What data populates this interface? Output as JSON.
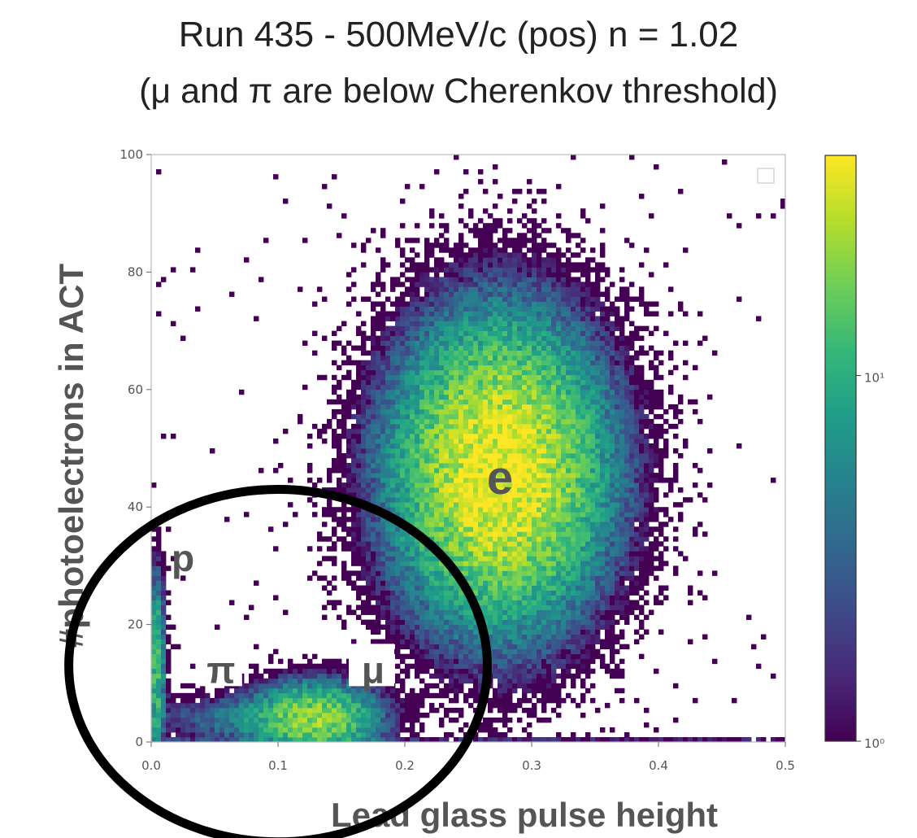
{
  "header": {
    "title": "Run 435 - 500MeV/c (pos) n = 1.02",
    "subtitle": "(μ and π are below Cherenkov threshold)"
  },
  "chart_data": {
    "type": "heatmap",
    "xlabel": "Lead glass pulse height",
    "ylabel": "#photoelectrons in ACT",
    "xlim": [
      0,
      0.5
    ],
    "ylim": [
      0,
      100
    ],
    "xticks": [
      0.0,
      0.1,
      0.2,
      0.3,
      0.4,
      0.5
    ],
    "xtick_labels": [
      "0.0",
      "0.1",
      "0.2",
      "0.3",
      "0.4",
      "0.5"
    ],
    "yticks": [
      0,
      20,
      40,
      60,
      80,
      100
    ],
    "ytick_labels": [
      "0",
      "20",
      "40",
      "60",
      "80",
      "100"
    ],
    "colorbar": {
      "scale": "log",
      "range": [
        1,
        40
      ],
      "ticks": [
        1,
        10
      ],
      "tick_labels": [
        "10⁰",
        "10¹"
      ],
      "colormap": "viridis"
    },
    "clusters": [
      {
        "label": "e",
        "x_center": 0.275,
        "y_center": 46,
        "x_sigma": 0.045,
        "y_sigma": 14,
        "peak_count": 40
      },
      {
        "label": "μ",
        "x_center": 0.13,
        "y_center": 4,
        "x_sigma": 0.028,
        "y_sigma": 3.5,
        "peak_count": 22
      },
      {
        "label": "π",
        "x_center": 0.07,
        "y_center": 4,
        "x_sigma": 0.04,
        "y_sigma": 2.5,
        "peak_count": 4
      },
      {
        "label": "p",
        "x_center": 0.004,
        "y_center": 13,
        "x_sigma": 0.004,
        "y_sigma": 9,
        "peak_count": 14
      }
    ],
    "annotations": [
      {
        "text": "e",
        "x": 0.275,
        "y": 45
      },
      {
        "text": "p",
        "x": 0.025,
        "y": 31
      },
      {
        "text": "π",
        "x": 0.055,
        "y": 12
      },
      {
        "text": "μ",
        "x": 0.175,
        "y": 12
      }
    ],
    "highlight_ellipse": {
      "x_center": 0.1,
      "y_center": 13,
      "x_radius": 0.165,
      "y_radius": 30
    },
    "grid": false
  },
  "colors": {
    "viridis": [
      "#440154",
      "#482878",
      "#3e4a89",
      "#31688e",
      "#26828e",
      "#1f9e89",
      "#35b779",
      "#6ece58",
      "#b5de2b",
      "#fde725"
    ],
    "text": "#555555",
    "ellipse": "#000000"
  }
}
